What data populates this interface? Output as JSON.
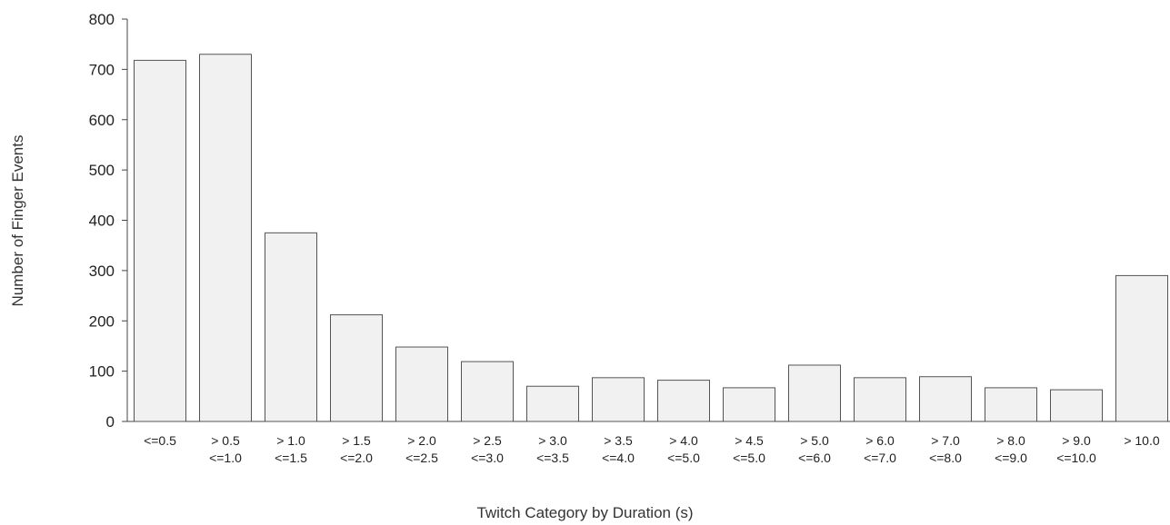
{
  "chart_data": {
    "type": "bar",
    "categories": [
      [
        "<=0.5"
      ],
      [
        "> 0.5",
        "<=1.0"
      ],
      [
        "> 1.0",
        "<=1.5"
      ],
      [
        "> 1.5",
        "<=2.0"
      ],
      [
        "> 2.0",
        "<=2.5"
      ],
      [
        "> 2.5",
        "<=3.0"
      ],
      [
        "> 3.0",
        "<=3.5"
      ],
      [
        "> 3.5",
        "<=4.0"
      ],
      [
        "> 4.0",
        "<=5.0"
      ],
      [
        "> 4.5",
        "<=5.0"
      ],
      [
        "> 5.0",
        "<=6.0"
      ],
      [
        "> 6.0",
        "<=7.0"
      ],
      [
        "> 7.0",
        "<=8.0"
      ],
      [
        "> 8.0",
        "<=9.0"
      ],
      [
        "> 9.0",
        "<=10.0"
      ],
      [
        "> 10.0"
      ]
    ],
    "values": [
      718,
      730,
      375,
      212,
      148,
      119,
      70,
      87,
      82,
      67,
      112,
      87,
      89,
      67,
      63,
      290
    ],
    "xlabel": "Twitch Category by Duration (s)",
    "ylabel": "Number of Finger Events",
    "ylim": [
      0,
      800
    ],
    "yticks": [
      0,
      100,
      200,
      300,
      400,
      500,
      600,
      700,
      800
    ],
    "bar_color": "#f1f1f1",
    "bar_edge_color": "#555555",
    "grid": false
  }
}
